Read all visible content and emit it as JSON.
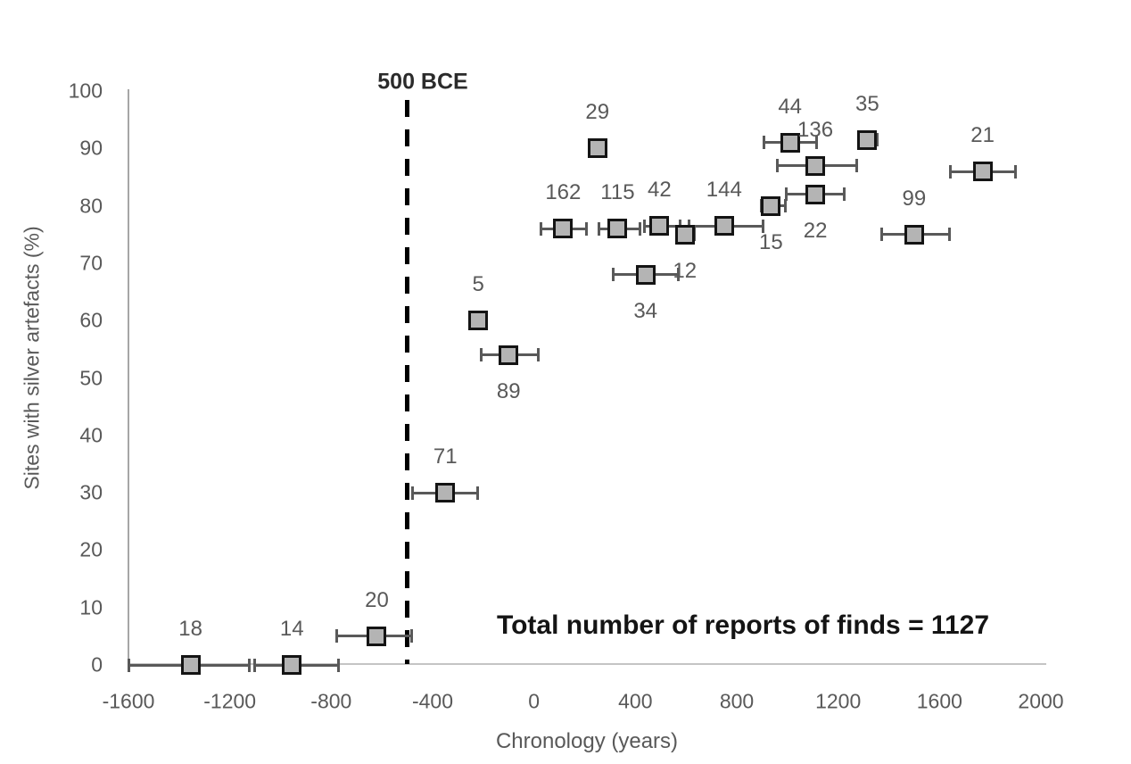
{
  "chart_data": {
    "type": "scatter",
    "title": "",
    "xlabel": "Chronology (years)",
    "ylabel": "Sites with silver artefacts (%)",
    "xlim": [
      -1600,
      2000
    ],
    "ylim": [
      0,
      100
    ],
    "x_ticks": [
      -1600,
      -1200,
      -800,
      -400,
      0,
      400,
      800,
      1200,
      1600,
      2000
    ],
    "y_ticks": [
      0,
      10,
      20,
      30,
      40,
      50,
      60,
      70,
      80,
      90,
      100
    ],
    "grid": false,
    "legend": "none",
    "marker_shape": "square",
    "annotation": "Total number of reports of finds = 1127",
    "vline": {
      "x": -500,
      "label": "500 BCE"
    },
    "points": [
      {
        "label": "18",
        "x": -1355,
        "y": 0,
        "x_err_low": -1600,
        "x_err_high": -1120,
        "label_side": "above"
      },
      {
        "label": "14",
        "x": -955,
        "y": 0,
        "x_err_low": -1105,
        "x_err_high": -770,
        "label_side": "above"
      },
      {
        "label": "20",
        "x": -620,
        "y": 5,
        "x_err_low": -780,
        "x_err_high": -480,
        "label_side": "above"
      },
      {
        "label": "71",
        "x": -350,
        "y": 30,
        "x_err_low": -480,
        "x_err_high": -220,
        "label_side": "above"
      },
      {
        "label": "5",
        "x": -220,
        "y": 60,
        "x_err_low": -220,
        "x_err_high": -220,
        "label_side": "above"
      },
      {
        "label": "89",
        "x": -100,
        "y": 54,
        "x_err_low": -210,
        "x_err_high": 20,
        "label_side": "below"
      },
      {
        "label": "162",
        "x": 115,
        "y": 76,
        "x_err_low": 25,
        "x_err_high": 210,
        "label_side": "above"
      },
      {
        "label": "29",
        "x": 250,
        "y": 90,
        "x_err_low": 250,
        "x_err_high": 250,
        "label_side": "above"
      },
      {
        "label": "115",
        "x": 330,
        "y": 76,
        "x_err_low": 255,
        "x_err_high": 420,
        "label_side": "above"
      },
      {
        "label": "34",
        "x": 440,
        "y": 68,
        "x_err_low": 310,
        "x_err_high": 570,
        "label_side": "below"
      },
      {
        "label": "42",
        "x": 495,
        "y": 76.5,
        "x_err_low": 435,
        "x_err_high": 615,
        "label_side": "above"
      },
      {
        "label": "12",
        "x": 595,
        "y": 75,
        "x_err_low": 560,
        "x_err_high": 635,
        "label_side": "below"
      },
      {
        "label": "144",
        "x": 750,
        "y": 76.5,
        "x_err_low": 575,
        "x_err_high": 905,
        "label_side": "above"
      },
      {
        "label": "15",
        "x": 935,
        "y": 80,
        "x_err_low": 895,
        "x_err_high": 995,
        "label_side": "below"
      },
      {
        "label": "44",
        "x": 1010,
        "y": 91,
        "x_err_low": 905,
        "x_err_high": 1115,
        "label_side": "above"
      },
      {
        "label": "136",
        "x": 1110,
        "y": 87,
        "x_err_low": 960,
        "x_err_high": 1275,
        "label_side": "above"
      },
      {
        "label": "22",
        "x": 1110,
        "y": 82,
        "x_err_low": 995,
        "x_err_high": 1225,
        "label_side": "below"
      },
      {
        "label": "35",
        "x": 1315,
        "y": 91.5,
        "x_err_low": 1280,
        "x_err_high": 1355,
        "label_side": "above"
      },
      {
        "label": "99",
        "x": 1500,
        "y": 75,
        "x_err_low": 1370,
        "x_err_high": 1640,
        "label_side": "above"
      },
      {
        "label": "21",
        "x": 1770,
        "y": 86,
        "x_err_low": 1640,
        "x_err_high": 1900,
        "label_side": "above"
      }
    ],
    "colors": {
      "marker_fill": "#b4b4b4",
      "marker_border": "#141414",
      "error_bar": "#595959",
      "axis_text": "#595959",
      "y_axis_line": "#a6a6a6",
      "x_axis_line": "#c4c4c4",
      "vline": "#000000",
      "vline_label_text": "#2b2b2b",
      "annotation_text": "#141414",
      "background": "#ffffff"
    }
  }
}
